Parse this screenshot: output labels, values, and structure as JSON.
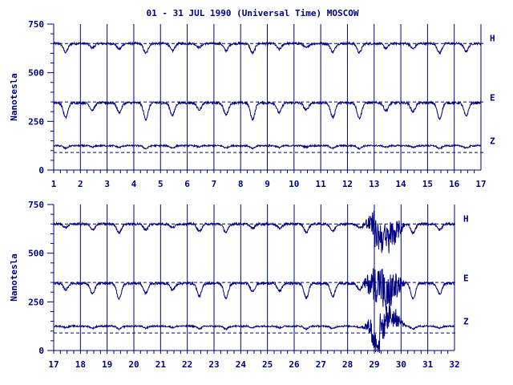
{
  "chart_data": {
    "type": "line",
    "title": "01 - 31 JUL 1990 (Universal Time) MOSCOW",
    "ylabel": "Nanotesla",
    "grid": true,
    "panels": [
      {
        "x_ticks": [
          "1",
          "2",
          "3",
          "4",
          "5",
          "6",
          "7",
          "8",
          "9",
          "10",
          "11",
          "12",
          "13",
          "14",
          "15",
          "16",
          "17"
        ],
        "xlim": [
          1,
          17
        ],
        "ylim": [
          0,
          750
        ],
        "y_ticks": [
          "0",
          "250",
          "500",
          "750"
        ],
        "reference_lines": [
          650,
          350,
          90
        ],
        "series": [
          {
            "name": "H",
            "baseline": 650,
            "daily_dip": 50,
            "noise": 6
          },
          {
            "name": "E",
            "baseline": 345,
            "daily_dip": 85,
            "noise": 6
          },
          {
            "name": "Z",
            "baseline": 125,
            "daily_dip": 15,
            "noise": 4
          }
        ]
      },
      {
        "x_ticks": [
          "17",
          "18",
          "19",
          "20",
          "21",
          "22",
          "23",
          "24",
          "25",
          "26",
          "27",
          "28",
          "29",
          "30",
          "31",
          "32"
        ],
        "xlim": [
          17,
          32
        ],
        "ylim": [
          0,
          750
        ],
        "y_ticks": [
          "0",
          "250",
          "500",
          "750"
        ],
        "reference_lines": [
          650,
          350,
          90
        ],
        "storm_day": [
          28.5,
          30.2
        ],
        "series": [
          {
            "name": "H",
            "baseline": 650,
            "daily_dip": 45,
            "noise": 6
          },
          {
            "name": "E",
            "baseline": 345,
            "daily_dip": 80,
            "noise": 6
          },
          {
            "name": "Z",
            "baseline": 125,
            "daily_dip": 15,
            "noise": 4
          }
        ]
      }
    ]
  }
}
